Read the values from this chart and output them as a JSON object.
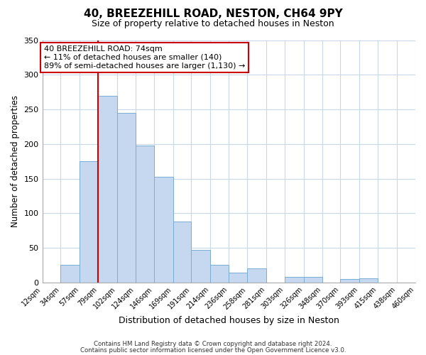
{
  "title": "40, BREEZEHILL ROAD, NESTON, CH64 9PY",
  "subtitle": "Size of property relative to detached houses in Neston",
  "xlabel": "Distribution of detached houses by size in Neston",
  "ylabel": "Number of detached properties",
  "bar_color": "#c5d8f0",
  "bar_edge_color": "#7aadd4",
  "background_color": "#ffffff",
  "grid_color": "#c8d8ea",
  "vline_x": 79,
  "vline_color": "#cc0000",
  "bin_edges": [
    12,
    34,
    57,
    79,
    102,
    124,
    146,
    169,
    191,
    214,
    236,
    258,
    281,
    303,
    326,
    348,
    370,
    393,
    415,
    438,
    460
  ],
  "bar_heights": [
    0,
    25,
    175,
    270,
    245,
    198,
    153,
    88,
    47,
    25,
    14,
    20,
    0,
    8,
    8,
    0,
    5,
    6,
    0,
    0
  ],
  "ylim": [
    0,
    350
  ],
  "yticks": [
    0,
    50,
    100,
    150,
    200,
    250,
    300,
    350
  ],
  "annotation_text": "40 BREEZEHILL ROAD: 74sqm\n← 11% of detached houses are smaller (140)\n89% of semi-detached houses are larger (1,130) →",
  "footer_line1": "Contains HM Land Registry data © Crown copyright and database right 2024.",
  "footer_line2": "Contains public sector information licensed under the Open Government Licence v3.0."
}
